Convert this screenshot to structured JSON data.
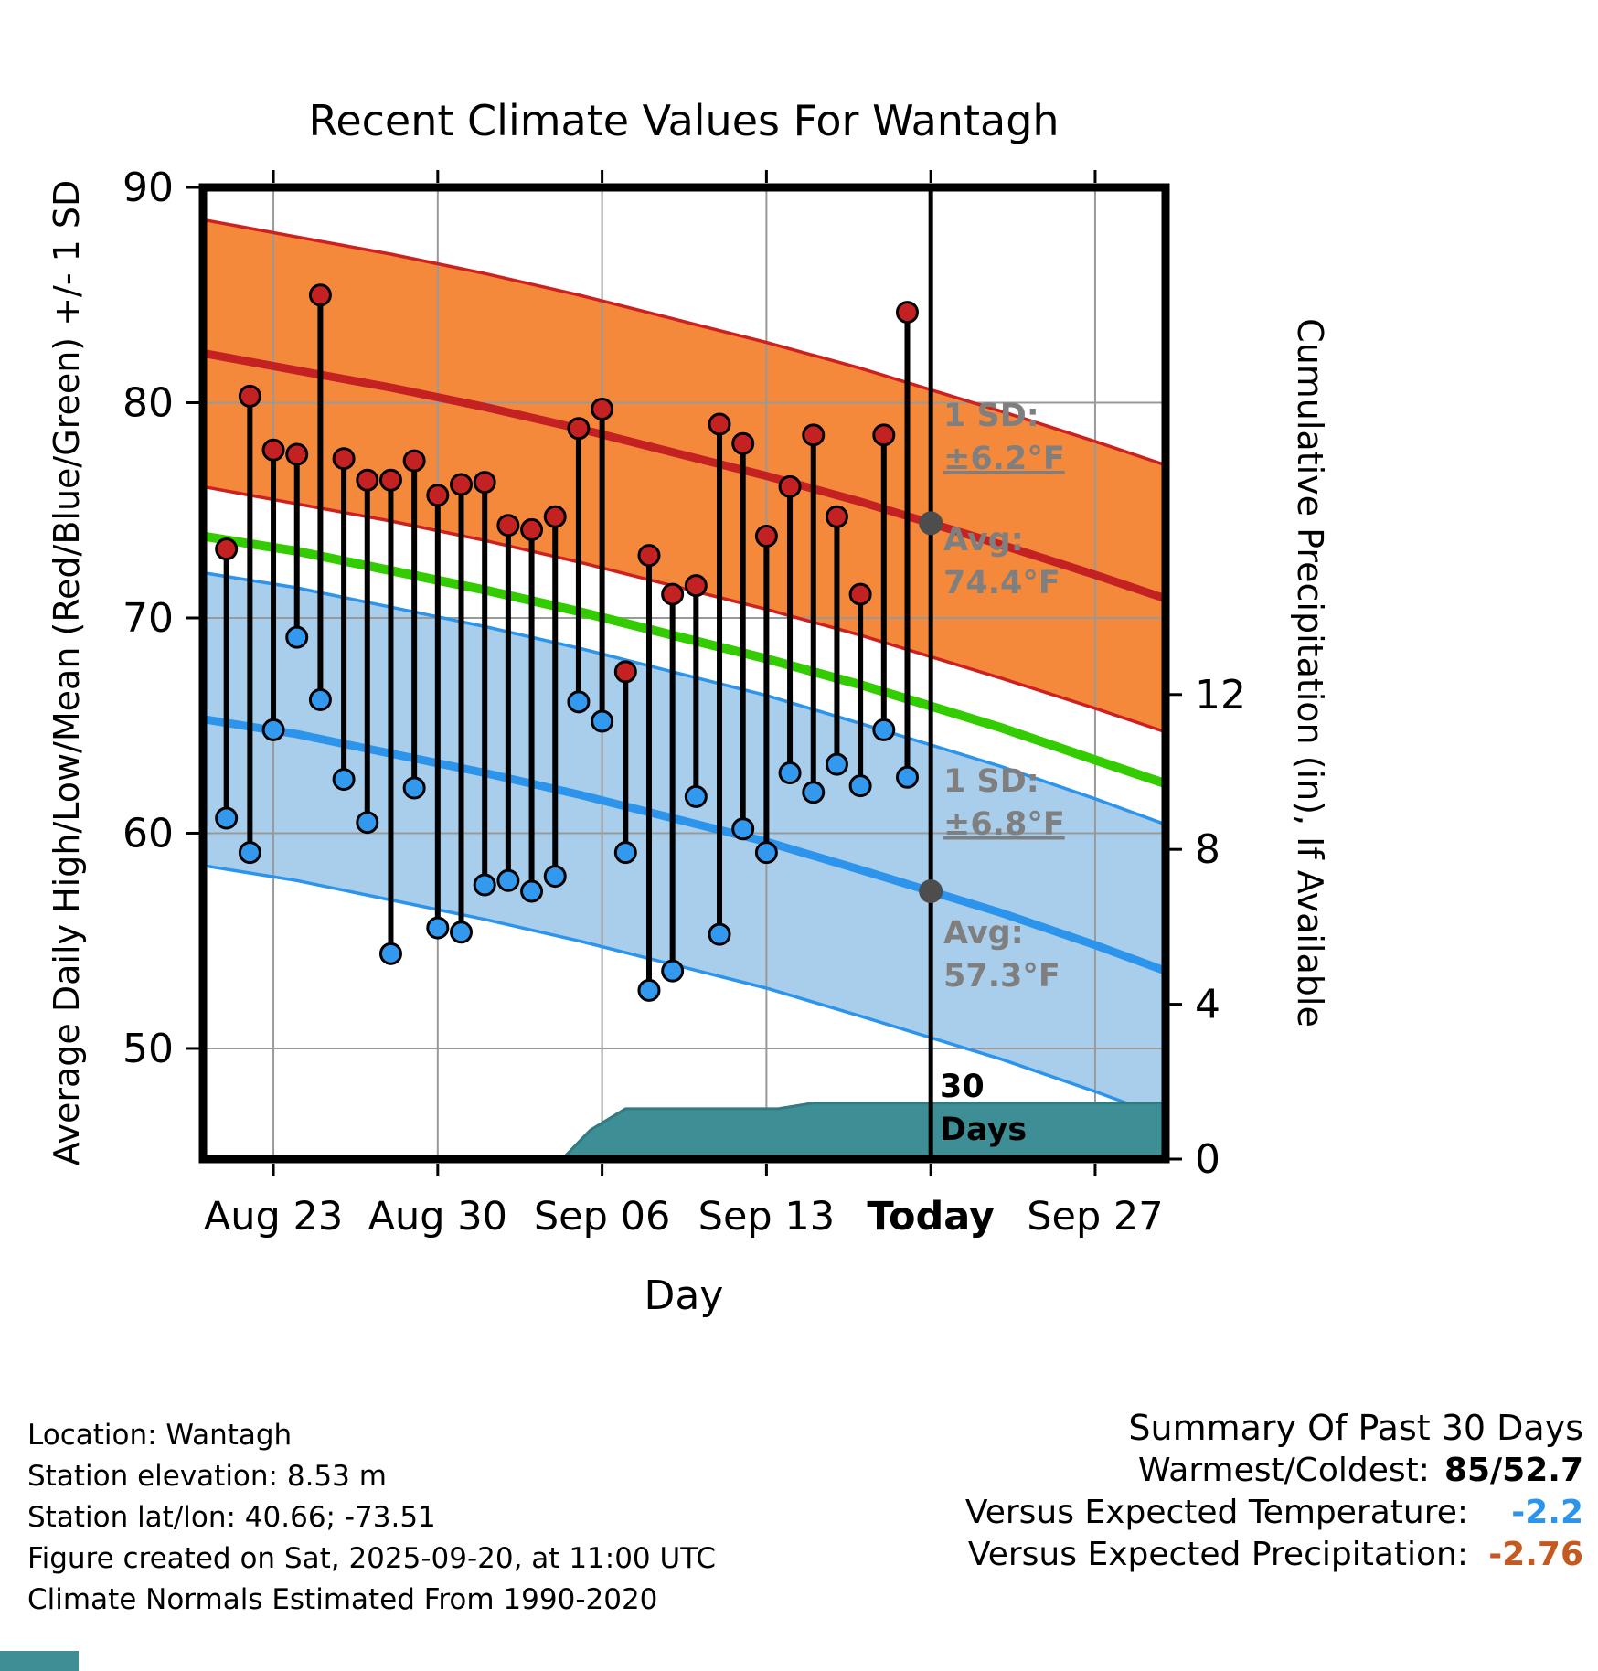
{
  "title": "Recent Climate Values For Wantagh",
  "y_left_label": "Average Daily High/Low/Mean (Red/Blue/Green) +/- 1 SD",
  "y_right_label": "Cumulative Precipitation (in), If Available",
  "x_label": "Day",
  "chart_data": {
    "type": "line",
    "x_axis": {
      "domain_days": [
        0,
        41
      ],
      "start_date": "Aug 20",
      "ticks": [
        {
          "day": 3,
          "label": "Aug 23"
        },
        {
          "day": 10,
          "label": "Aug 30"
        },
        {
          "day": 17,
          "label": "Sep 06"
        },
        {
          "day": 24,
          "label": "Sep 13"
        },
        {
          "day": 31,
          "label": "Today",
          "bold": true
        },
        {
          "day": 38,
          "label": "Sep 27"
        }
      ]
    },
    "y_temp": {
      "range": [
        44.86,
        90
      ],
      "ticks": [
        50,
        60,
        70,
        80,
        90
      ]
    },
    "y_precip": {
      "range": [
        0,
        25.1
      ],
      "ticks": [
        0,
        4,
        8,
        12
      ]
    },
    "normals": {
      "days": [
        0,
        4,
        8,
        12,
        16,
        20,
        24,
        28,
        31,
        34,
        38,
        41
      ],
      "high_avg": [
        82.3,
        81.5,
        80.7,
        79.8,
        78.8,
        77.7,
        76.6,
        75.4,
        74.4,
        73.4,
        72.0,
        70.9
      ],
      "low_avg": [
        65.3,
        64.6,
        63.7,
        62.8,
        61.8,
        60.7,
        59.6,
        58.3,
        57.3,
        56.3,
        54.8,
        53.6
      ],
      "mean": [
        73.8,
        73.1,
        72.2,
        71.3,
        70.3,
        69.2,
        68.1,
        66.9,
        65.9,
        64.9,
        63.4,
        62.3
      ],
      "high_sd": 6.2,
      "low_sd": 6.8
    },
    "daily": {
      "start_day": 1,
      "start_label": "Aug 21",
      "high": [
        73.2,
        80.3,
        77.8,
        77.6,
        85.0,
        77.4,
        76.4,
        76.4,
        77.3,
        75.7,
        76.2,
        76.3,
        74.3,
        74.1,
        74.7,
        78.8,
        79.7,
        67.5,
        72.9,
        71.1,
        71.5,
        79.0,
        78.1,
        73.8,
        76.1,
        78.5,
        74.7,
        71.1,
        78.5,
        84.2
      ],
      "low": [
        60.7,
        59.1,
        64.8,
        69.1,
        66.2,
        62.5,
        60.5,
        54.4,
        62.1,
        55.6,
        55.4,
        57.6,
        57.8,
        57.3,
        58.0,
        66.1,
        65.2,
        59.1,
        52.7,
        53.6,
        61.7,
        55.3,
        60.2,
        59.1,
        62.8,
        61.9,
        63.2,
        62.2,
        64.8,
        62.6
      ]
    },
    "precip_cumulative": {
      "points": [
        [
          0,
          0
        ],
        [
          15.3,
          0
        ],
        [
          16.5,
          0.75
        ],
        [
          18,
          1.3
        ],
        [
          24.5,
          1.3
        ],
        [
          26,
          1.45
        ],
        [
          41,
          1.45
        ]
      ]
    },
    "today_day": 31,
    "today_markers": [
      {
        "day": 31,
        "value": 74.4
      },
      {
        "day": 31,
        "value": 57.3
      }
    ],
    "colors": {
      "high_fill": "#F5893B",
      "high_edge": "#CD2121",
      "high_line": "#C42222",
      "low_fill": "#A9CEEC",
      "low_edge": "#2D94EC",
      "low_line": "#2D94EC",
      "mean_line": "#33CC00",
      "high_dot": "#C42222",
      "low_dot": "#3399EE",
      "precip_fill": "#3E8E96",
      "precip_edge": "#337A81",
      "grid": "#999999",
      "annotation": "#7F7F7F",
      "today_marker": "#4D4D4D"
    }
  },
  "annotations": {
    "high_sd": [
      "1 SD:",
      "±6.2°F"
    ],
    "high_avg": [
      "Avg:",
      "74.4°F"
    ],
    "low_sd": [
      "1 SD:",
      "±6.8°F"
    ],
    "low_avg": [
      "Avg:",
      "57.3°F"
    ],
    "period": [
      "30",
      "Days"
    ]
  },
  "footer": {
    "lines": [
      "Location: Wantagh",
      "Station elevation: 8.53 m",
      "Station lat/lon: 40.66; -73.51",
      "Figure created on Sat, 2025-09-20, at 11:00 UTC",
      "Climate Normals Estimated From 1990-2020"
    ]
  },
  "summary": {
    "title": "Summary Of Past 30 Days",
    "rows": [
      {
        "label": "Warmest/Coldest:",
        "value": "85/52.7",
        "color": "#000000"
      },
      {
        "label": "Versus Expected Temperature:",
        "value": "-2.2",
        "color": "#2D94EC"
      },
      {
        "label": "Versus Expected Precipitation:",
        "value": "-2.76",
        "color": "#C45A21"
      }
    ]
  }
}
